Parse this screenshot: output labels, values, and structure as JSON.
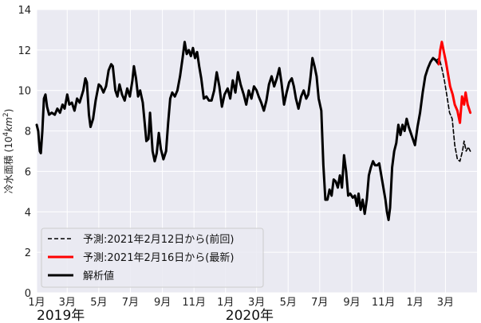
{
  "chart_data": {
    "type": "line",
    "ylabel_prefix": "冷水面積 (10",
    "ylabel_sup1": "4",
    "ylabel_mid": "km",
    "ylabel_sup2": "2",
    "ylabel_suffix": ")",
    "ylim": [
      0,
      14
    ],
    "yticks": [
      0,
      2,
      4,
      6,
      8,
      10,
      12,
      14
    ],
    "xlim": [
      "2019-01-01",
      "2021-05-01"
    ],
    "xtick_labels": [
      {
        "date": "2019-01-01",
        "label": "1月"
      },
      {
        "date": "2019-03-01",
        "label": "3月"
      },
      {
        "date": "2019-05-01",
        "label": "5月"
      },
      {
        "date": "2019-07-01",
        "label": "7月"
      },
      {
        "date": "2019-09-01",
        "label": "9月"
      },
      {
        "date": "2019-11-01",
        "label": "11月"
      },
      {
        "date": "2020-01-01",
        "label": "1月"
      },
      {
        "date": "2020-03-01",
        "label": "3月"
      },
      {
        "date": "2020-05-01",
        "label": "5月"
      },
      {
        "date": "2020-07-01",
        "label": "7月"
      },
      {
        "date": "2020-09-01",
        "label": "9月"
      },
      {
        "date": "2020-11-01",
        "label": "11月"
      },
      {
        "date": "2021-01-01",
        "label": "1月"
      },
      {
        "date": "2021-03-01",
        "label": "3月"
      }
    ],
    "year_labels": [
      {
        "date": "2019-01-01",
        "label": "2019年"
      },
      {
        "date": "2020-01-01",
        "label": "2020年"
      }
    ],
    "grid": true,
    "legend_position": "bottom-left",
    "series": [
      {
        "name": "解析値",
        "color": "#000000",
        "style": "solid",
        "points": [
          [
            "2019-01-01",
            8.3
          ],
          [
            "2019-01-04",
            8.0
          ],
          [
            "2019-01-07",
            7.0
          ],
          [
            "2019-01-09",
            6.9
          ],
          [
            "2019-01-12",
            8.0
          ],
          [
            "2019-01-15",
            9.6
          ],
          [
            "2019-01-18",
            9.8
          ],
          [
            "2019-01-21",
            9.2
          ],
          [
            "2019-01-25",
            8.8
          ],
          [
            "2019-01-30",
            8.9
          ],
          [
            "2019-02-05",
            8.8
          ],
          [
            "2019-02-10",
            9.1
          ],
          [
            "2019-02-15",
            8.9
          ],
          [
            "2019-02-20",
            9.3
          ],
          [
            "2019-02-24",
            9.1
          ],
          [
            "2019-03-01",
            9.8
          ],
          [
            "2019-03-05",
            9.3
          ],
          [
            "2019-03-10",
            9.4
          ],
          [
            "2019-03-15",
            9.0
          ],
          [
            "2019-03-20",
            9.6
          ],
          [
            "2019-03-25",
            9.4
          ],
          [
            "2019-04-01",
            10.0
          ],
          [
            "2019-04-05",
            10.6
          ],
          [
            "2019-04-08",
            10.4
          ],
          [
            "2019-04-12",
            8.8
          ],
          [
            "2019-04-15",
            8.2
          ],
          [
            "2019-04-20",
            8.6
          ],
          [
            "2019-04-25",
            9.5
          ],
          [
            "2019-05-01",
            10.3
          ],
          [
            "2019-05-05",
            10.2
          ],
          [
            "2019-05-10",
            9.9
          ],
          [
            "2019-05-15",
            10.2
          ],
          [
            "2019-05-20",
            11.0
          ],
          [
            "2019-05-25",
            11.3
          ],
          [
            "2019-05-28",
            11.2
          ],
          [
            "2019-06-02",
            10.0
          ],
          [
            "2019-06-06",
            9.7
          ],
          [
            "2019-06-10",
            10.3
          ],
          [
            "2019-06-15",
            9.8
          ],
          [
            "2019-06-20",
            9.5
          ],
          [
            "2019-06-25",
            10.1
          ],
          [
            "2019-06-30",
            9.7
          ],
          [
            "2019-07-05",
            10.5
          ],
          [
            "2019-07-08",
            11.2
          ],
          [
            "2019-07-12",
            10.6
          ],
          [
            "2019-07-16",
            9.7
          ],
          [
            "2019-07-20",
            10.0
          ],
          [
            "2019-07-25",
            9.4
          ],
          [
            "2019-08-01",
            7.5
          ],
          [
            "2019-08-05",
            7.6
          ],
          [
            "2019-08-08",
            8.9
          ],
          [
            "2019-08-13",
            7.0
          ],
          [
            "2019-08-17",
            6.5
          ],
          [
            "2019-08-21",
            6.9
          ],
          [
            "2019-08-25",
            7.9
          ],
          [
            "2019-08-29",
            7.1
          ],
          [
            "2019-09-03",
            6.6
          ],
          [
            "2019-09-08",
            7.0
          ],
          [
            "2019-09-12",
            8.4
          ],
          [
            "2019-09-16",
            9.6
          ],
          [
            "2019-09-20",
            9.9
          ],
          [
            "2019-09-25",
            9.7
          ],
          [
            "2019-09-30",
            10.0
          ],
          [
            "2019-10-05",
            10.7
          ],
          [
            "2019-10-10",
            11.6
          ],
          [
            "2019-10-14",
            12.4
          ],
          [
            "2019-10-18",
            11.8
          ],
          [
            "2019-10-22",
            12.0
          ],
          [
            "2019-10-26",
            11.7
          ],
          [
            "2019-10-30",
            12.1
          ],
          [
            "2019-11-03",
            11.6
          ],
          [
            "2019-11-07",
            11.9
          ],
          [
            "2019-11-11",
            11.2
          ],
          [
            "2019-11-15",
            10.6
          ],
          [
            "2019-11-20",
            9.6
          ],
          [
            "2019-11-25",
            9.7
          ],
          [
            "2019-11-30",
            9.5
          ],
          [
            "2019-12-05",
            9.5
          ],
          [
            "2019-12-10",
            10.0
          ],
          [
            "2019-12-15",
            10.9
          ],
          [
            "2019-12-20",
            10.2
          ],
          [
            "2019-12-25",
            9.2
          ],
          [
            "2019-12-30",
            9.8
          ],
          [
            "2020-01-05",
            10.1
          ],
          [
            "2020-01-10",
            9.6
          ],
          [
            "2020-01-15",
            10.5
          ],
          [
            "2020-01-20",
            9.9
          ],
          [
            "2020-01-25",
            10.9
          ],
          [
            "2020-01-30",
            10.3
          ],
          [
            "2020-02-05",
            9.8
          ],
          [
            "2020-02-10",
            9.3
          ],
          [
            "2020-02-15",
            10.0
          ],
          [
            "2020-02-20",
            9.6
          ],
          [
            "2020-02-25",
            10.2
          ],
          [
            "2020-03-01",
            10.0
          ],
          [
            "2020-03-05",
            9.7
          ],
          [
            "2020-03-10",
            9.4
          ],
          [
            "2020-03-15",
            9.0
          ],
          [
            "2020-03-20",
            9.5
          ],
          [
            "2020-03-25",
            10.3
          ],
          [
            "2020-03-30",
            10.7
          ],
          [
            "2020-04-04",
            10.2
          ],
          [
            "2020-04-09",
            10.6
          ],
          [
            "2020-04-14",
            11.1
          ],
          [
            "2020-04-18",
            10.4
          ],
          [
            "2020-04-23",
            9.3
          ],
          [
            "2020-04-28",
            9.9
          ],
          [
            "2020-05-03",
            10.4
          ],
          [
            "2020-05-08",
            10.6
          ],
          [
            "2020-05-12",
            10.2
          ],
          [
            "2020-05-16",
            9.6
          ],
          [
            "2020-05-21",
            9.1
          ],
          [
            "2020-05-26",
            9.7
          ],
          [
            "2020-05-31",
            10.0
          ],
          [
            "2020-06-05",
            9.6
          ],
          [
            "2020-06-09",
            9.8
          ],
          [
            "2020-06-13",
            10.6
          ],
          [
            "2020-06-17",
            11.6
          ],
          [
            "2020-06-21",
            11.2
          ],
          [
            "2020-06-25",
            10.7
          ],
          [
            "2020-06-29",
            9.6
          ],
          [
            "2020-07-04",
            9.0
          ],
          [
            "2020-07-08",
            6.3
          ],
          [
            "2020-07-12",
            4.6
          ],
          [
            "2020-07-16",
            4.6
          ],
          [
            "2020-07-20",
            5.1
          ],
          [
            "2020-07-24",
            4.8
          ],
          [
            "2020-07-28",
            5.6
          ],
          [
            "2020-08-01",
            5.5
          ],
          [
            "2020-08-05",
            5.2
          ],
          [
            "2020-08-09",
            5.8
          ],
          [
            "2020-08-13",
            5.2
          ],
          [
            "2020-08-17",
            6.8
          ],
          [
            "2020-08-21",
            6.0
          ],
          [
            "2020-08-25",
            4.8
          ],
          [
            "2020-08-29",
            4.9
          ],
          [
            "2020-09-03",
            4.7
          ],
          [
            "2020-09-07",
            4.8
          ],
          [
            "2020-09-11",
            4.3
          ],
          [
            "2020-09-14",
            4.9
          ],
          [
            "2020-09-18",
            4.1
          ],
          [
            "2020-09-22",
            4.6
          ],
          [
            "2020-09-26",
            3.9
          ],
          [
            "2020-09-30",
            4.6
          ],
          [
            "2020-10-04",
            5.8
          ],
          [
            "2020-10-08",
            6.2
          ],
          [
            "2020-10-12",
            6.5
          ],
          [
            "2020-10-16",
            6.3
          ],
          [
            "2020-10-20",
            6.3
          ],
          [
            "2020-10-24",
            6.4
          ],
          [
            "2020-10-28",
            5.8
          ],
          [
            "2020-11-01",
            5.2
          ],
          [
            "2020-11-05",
            4.6
          ],
          [
            "2020-11-08",
            4.0
          ],
          [
            "2020-11-11",
            3.6
          ],
          [
            "2020-11-14",
            4.2
          ],
          [
            "2020-11-18",
            6.2
          ],
          [
            "2020-11-22",
            7.0
          ],
          [
            "2020-11-26",
            7.4
          ],
          [
            "2020-11-30",
            8.3
          ],
          [
            "2020-12-04",
            7.8
          ],
          [
            "2020-12-08",
            8.3
          ],
          [
            "2020-12-12",
            8.0
          ],
          [
            "2020-12-16",
            8.6
          ],
          [
            "2020-12-20",
            8.2
          ],
          [
            "2021-01-01",
            7.3
          ],
          [
            "2021-01-06",
            8.2
          ],
          [
            "2021-01-11",
            8.9
          ],
          [
            "2021-01-16",
            9.9
          ],
          [
            "2021-01-21",
            10.7
          ],
          [
            "2021-01-26",
            11.1
          ],
          [
            "2021-01-31",
            11.4
          ],
          [
            "2021-02-05",
            11.6
          ],
          [
            "2021-02-10",
            11.5
          ],
          [
            "2021-02-16",
            11.3
          ]
        ]
      },
      {
        "name": "予測:2021年2月12日から(前回)",
        "color": "#000000",
        "style": "dashed",
        "points": [
          [
            "2021-02-12",
            11.5
          ],
          [
            "2021-02-17",
            11.6
          ],
          [
            "2021-02-22",
            11.1
          ],
          [
            "2021-02-27",
            10.5
          ],
          [
            "2021-03-04",
            9.7
          ],
          [
            "2021-03-09",
            8.9
          ],
          [
            "2021-03-14",
            8.6
          ],
          [
            "2021-03-19",
            7.3
          ],
          [
            "2021-03-24",
            6.6
          ],
          [
            "2021-03-29",
            6.5
          ],
          [
            "2021-04-03",
            7.0
          ],
          [
            "2021-04-06",
            7.5
          ],
          [
            "2021-04-10",
            7.0
          ],
          [
            "2021-04-14",
            7.2
          ],
          [
            "2021-04-18",
            7.0
          ]
        ]
      },
      {
        "name": "予測:2021年2月16日から(最新)",
        "color": "#ff0000",
        "style": "solid",
        "points": [
          [
            "2021-02-16",
            11.3
          ],
          [
            "2021-02-19",
            12.0
          ],
          [
            "2021-02-22",
            12.4
          ],
          [
            "2021-02-26",
            11.9
          ],
          [
            "2021-03-02",
            11.4
          ],
          [
            "2021-03-06",
            10.8
          ],
          [
            "2021-03-10",
            10.2
          ],
          [
            "2021-03-15",
            9.8
          ],
          [
            "2021-03-19",
            9.3
          ],
          [
            "2021-03-24",
            9.0
          ],
          [
            "2021-03-29",
            8.4
          ],
          [
            "2021-04-02",
            9.7
          ],
          [
            "2021-04-06",
            9.3
          ],
          [
            "2021-04-09",
            9.9
          ],
          [
            "2021-04-13",
            9.3
          ],
          [
            "2021-04-18",
            8.9
          ]
        ]
      }
    ],
    "legend_order": [
      1,
      2,
      0
    ]
  }
}
